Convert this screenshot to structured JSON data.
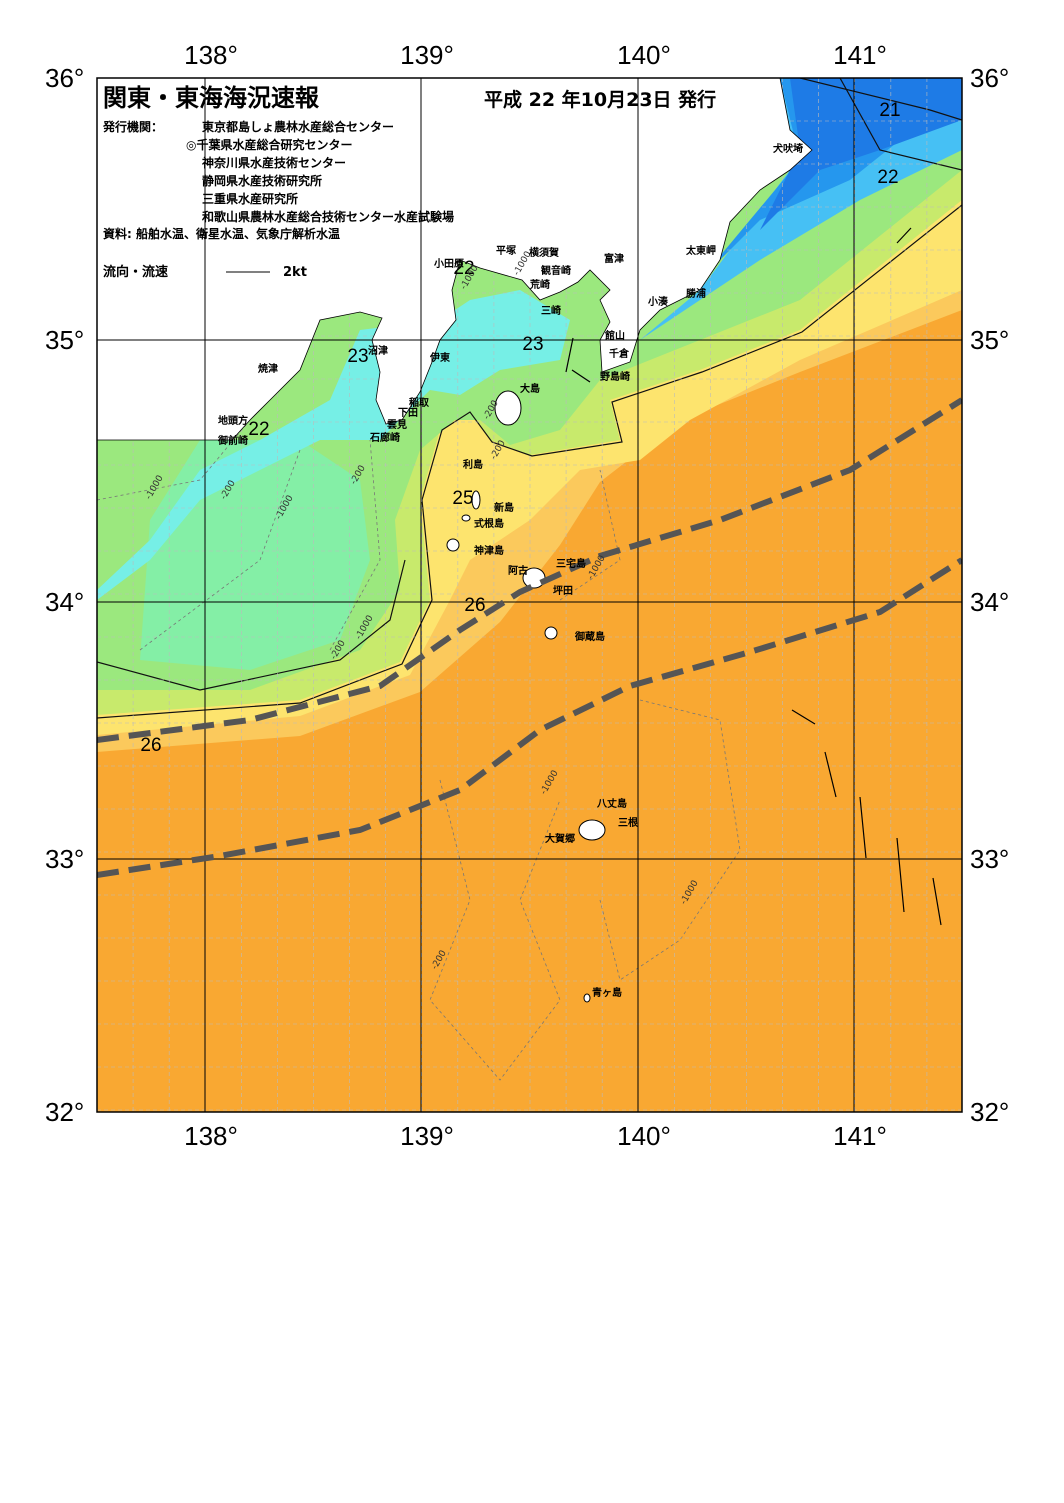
{
  "header": {
    "title": "関東・東海海況速報",
    "date": "平成 22 年10月23日 発行",
    "issuer_label": "発行機関：",
    "issuers": [
      "東京都島しょ農林水産総合センター",
      "◎千葉県水産総合研究センター",
      "神奈川県水産技術センター",
      "静岡県水産技術研究所",
      "三重県水産研究所",
      "和歌山県農林水産総合技術センター水産試験場"
    ],
    "source": "資料: 船舶水温、衛星水温、気象庁解析水温",
    "legend": "流向・流速",
    "legend_scale": "2kt"
  },
  "axes": {
    "lon_labels": [
      "138°",
      "139°",
      "140°",
      "141°"
    ],
    "lat_labels": [
      "36°",
      "35°",
      "34°",
      "33°",
      "32°"
    ]
  },
  "isotherm_labels": [
    "21",
    "22",
    "22",
    "23",
    "23",
    "22",
    "25",
    "26",
    "26"
  ],
  "depth_labels": [
    "-200",
    "-1000",
    "-200",
    "-1000",
    "-200",
    "-1000",
    "-200",
    "-1000",
    "-1000",
    "-200",
    "-1000",
    "-1000",
    "-1000",
    "-200"
  ],
  "places": [
    "犬吠埼",
    "太東岬",
    "勝浦",
    "小湊",
    "富津",
    "横須賀",
    "平塚",
    "観音崎",
    "荒崎",
    "小田原",
    "三崎",
    "館山",
    "千倉",
    "野島崎",
    "大島",
    "沼津",
    "伊東",
    "焼津",
    "稲取",
    "下田",
    "雲見",
    "石廊崎",
    "地頭方",
    "御前崎",
    "利島",
    "新島",
    "式根島",
    "神津島",
    "三宅島",
    "阿古",
    "坪田",
    "御蔵島",
    "八丈島",
    "三根",
    "大賀郷",
    "青ヶ島"
  ]
}
